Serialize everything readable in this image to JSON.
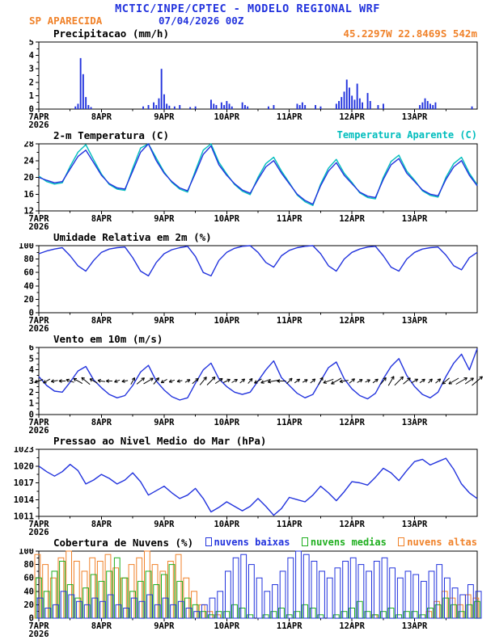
{
  "header": {
    "title": "MCTIC/INPE/CPTEC - MODELO REGIONAL WRF",
    "station": "SP APARECIDA",
    "run": "07/04/2026 00Z",
    "coords": "45.2297W 22.8469S 542m"
  },
  "colors": {
    "blue": "#2233dd",
    "cyan": "#00bdbd",
    "orange": "#f0822a",
    "green": "#1faf1f",
    "black": "#000000"
  },
  "x_axis": {
    "total_hours": 168,
    "step_hours": 3,
    "major_ticks": [
      0,
      24,
      48,
      72,
      96,
      120,
      144
    ],
    "labels": [
      "7APR",
      "8APR",
      "9APR",
      "10APR",
      "11APR",
      "12APR",
      "13APR"
    ],
    "year": "2026"
  },
  "chart_data": [
    {
      "id": "precip",
      "type": "bar",
      "title": "Precipitacao (mm/h)",
      "ylabel": "mm/h",
      "ylim": [
        0,
        5
      ],
      "yticks": [
        0,
        1,
        2,
        3,
        4,
        5
      ],
      "bar_color": "blue",
      "bars_hourly": [
        [
          14,
          0.2
        ],
        [
          15,
          0.4
        ],
        [
          16,
          3.8
        ],
        [
          17,
          2.6
        ],
        [
          18,
          0.9
        ],
        [
          19,
          0.3
        ],
        [
          20,
          0.15
        ],
        [
          40,
          0.2
        ],
        [
          42,
          0.3
        ],
        [
          44,
          0.5
        ],
        [
          45,
          0.3
        ],
        [
          46,
          0.8
        ],
        [
          47,
          3.0
        ],
        [
          48,
          1.1
        ],
        [
          49,
          0.4
        ],
        [
          50,
          0.25
        ],
        [
          52,
          0.2
        ],
        [
          54,
          0.3
        ],
        [
          58,
          0.15
        ],
        [
          60,
          0.2
        ],
        [
          66,
          0.7
        ],
        [
          67,
          0.4
        ],
        [
          68,
          0.3
        ],
        [
          70,
          0.5
        ],
        [
          71,
          0.3
        ],
        [
          72,
          0.6
        ],
        [
          73,
          0.4
        ],
        [
          74,
          0.2
        ],
        [
          78,
          0.5
        ],
        [
          79,
          0.3
        ],
        [
          80,
          0.2
        ],
        [
          88,
          0.2
        ],
        [
          90,
          0.3
        ],
        [
          99,
          0.4
        ],
        [
          100,
          0.3
        ],
        [
          101,
          0.5
        ],
        [
          102,
          0.3
        ],
        [
          106,
          0.3
        ],
        [
          108,
          0.2
        ],
        [
          114,
          0.4
        ],
        [
          115,
          0.6
        ],
        [
          116,
          0.9
        ],
        [
          117,
          1.3
        ],
        [
          118,
          2.2
        ],
        [
          119,
          1.6
        ],
        [
          120,
          1.0
        ],
        [
          121,
          0.7
        ],
        [
          122,
          1.9
        ],
        [
          123,
          0.8
        ],
        [
          124,
          0.5
        ],
        [
          126,
          1.2
        ],
        [
          127,
          0.6
        ],
        [
          130,
          0.3
        ],
        [
          132,
          0.4
        ],
        [
          146,
          0.3
        ],
        [
          147,
          0.5
        ],
        [
          148,
          0.8
        ],
        [
          149,
          0.6
        ],
        [
          150,
          0.4
        ],
        [
          151,
          0.3
        ],
        [
          152,
          0.5
        ],
        [
          166,
          0.2
        ]
      ]
    },
    {
      "id": "temp",
      "type": "line",
      "title": "2-m Temperatura (C)",
      "legend": "Temperatura Aparente (C)",
      "ylim": [
        12,
        28
      ],
      "yticks": [
        12,
        16,
        20,
        24,
        28
      ],
      "series": [
        {
          "name": "Temperatura Aparente (C)",
          "color": "cyan",
          "values": [
            20.3,
            19.0,
            18.4,
            18.7,
            22.6,
            26.0,
            27.8,
            24.2,
            20.8,
            18.3,
            17.2,
            16.9,
            22.2,
            27.0,
            28.0,
            24.6,
            21.3,
            18.8,
            17.2,
            16.5,
            21.6,
            26.5,
            28.0,
            23.6,
            20.8,
            18.3,
            16.7,
            15.9,
            20.0,
            23.3,
            24.8,
            21.5,
            18.7,
            15.8,
            14.2,
            13.3,
            18.4,
            22.2,
            24.3,
            21.0,
            18.8,
            16.3,
            15.2,
            14.9,
            20.0,
            23.8,
            25.3,
            21.5,
            19.3,
            16.8,
            15.7,
            15.3,
            20.0,
            23.3,
            24.8,
            21.0,
            18.2
          ]
        },
        {
          "name": "2-m Temperatura (C)",
          "color": "blue",
          "values": [
            20.0,
            19.3,
            18.7,
            19.0,
            22.0,
            25.0,
            26.5,
            23.5,
            20.5,
            18.5,
            17.5,
            17.2,
            21.5,
            26.0,
            28.0,
            24.0,
            21.0,
            19.0,
            17.5,
            16.8,
            21.0,
            25.5,
            27.5,
            23.0,
            20.5,
            18.5,
            17.0,
            16.2,
            19.5,
            22.5,
            24.0,
            21.0,
            18.5,
            16.0,
            14.5,
            13.6,
            18.0,
            21.5,
            23.5,
            20.5,
            18.5,
            16.5,
            15.5,
            15.2,
            19.5,
            23.0,
            24.5,
            21.0,
            19.0,
            17.0,
            16.0,
            15.6,
            19.5,
            22.5,
            24.0,
            20.5,
            18.0
          ]
        }
      ]
    },
    {
      "id": "rh",
      "type": "line",
      "title": "Umidade Relativa em 2m (%)",
      "ylim": [
        0,
        100
      ],
      "yticks": [
        0,
        20,
        40,
        60,
        80,
        100
      ],
      "series": [
        {
          "name": "Umidade Relativa em 2m (%)",
          "color": "blue",
          "values": [
            88,
            92,
            95,
            97,
            85,
            70,
            62,
            78,
            90,
            95,
            97,
            98,
            82,
            62,
            55,
            75,
            88,
            94,
            97,
            99,
            84,
            60,
            55,
            78,
            90,
            96,
            99,
            100,
            90,
            75,
            68,
            85,
            93,
            97,
            99,
            100,
            88,
            70,
            62,
            80,
            90,
            95,
            98,
            99,
            85,
            68,
            62,
            80,
            90,
            95,
            97,
            98,
            86,
            70,
            64,
            82,
            90
          ]
        }
      ]
    },
    {
      "id": "wind",
      "type": "wind",
      "title": "Vento em 10m (m/s)",
      "ylim": [
        0,
        6
      ],
      "yticks": [
        0,
        1,
        2,
        3,
        4,
        5,
        6
      ],
      "arrow_y": 3,
      "series": [
        {
          "name": "Vento em 10m (m/s)",
          "color": "blue",
          "values": [
            3.4,
            2.6,
            2.1,
            2.0,
            2.9,
            3.9,
            4.3,
            3.1,
            2.4,
            1.8,
            1.5,
            1.7,
            2.6,
            3.8,
            4.4,
            3.0,
            2.2,
            1.6,
            1.3,
            1.5,
            2.8,
            4.0,
            4.6,
            3.2,
            2.5,
            2.0,
            1.8,
            2.0,
            3.0,
            4.0,
            4.8,
            3.3,
            2.6,
            1.9,
            1.5,
            1.8,
            3.0,
            4.2,
            4.7,
            3.2,
            2.3,
            1.7,
            1.4,
            1.9,
            3.2,
            4.3,
            5.0,
            3.5,
            2.5,
            1.8,
            1.5,
            2.0,
            3.4,
            4.6,
            5.4,
            4.0,
            5.9
          ]
        }
      ],
      "directions_deg": [
        200,
        210,
        190,
        180,
        160,
        150,
        140,
        150,
        170,
        180,
        200,
        190,
        60,
        40,
        30,
        50,
        210,
        200,
        190,
        30,
        40,
        50,
        45,
        35,
        25,
        30,
        40,
        50,
        210,
        200,
        190,
        180,
        45,
        35,
        30,
        40,
        60,
        200,
        210,
        190,
        40,
        30,
        25,
        35,
        50,
        60,
        45,
        40,
        30,
        35,
        45,
        40,
        220,
        210,
        30,
        35,
        40
      ]
    },
    {
      "id": "pressure",
      "type": "line",
      "title": "Pressao ao Nivel Medio do Mar (hPa)",
      "ylim": [
        1011,
        1023
      ],
      "yticks": [
        1011,
        1014,
        1017,
        1020,
        1023
      ],
      "series": [
        {
          "name": "Pressao ao Nivel Medio do Mar (hPa)",
          "color": "blue",
          "values": [
            1020.0,
            1019.0,
            1018.2,
            1019.0,
            1020.3,
            1019.2,
            1016.8,
            1017.5,
            1018.5,
            1017.8,
            1016.8,
            1017.5,
            1018.8,
            1017.2,
            1014.8,
            1015.6,
            1016.4,
            1015.2,
            1014.2,
            1014.8,
            1016.0,
            1014.2,
            1011.8,
            1012.6,
            1013.6,
            1012.8,
            1012.0,
            1012.8,
            1014.2,
            1012.8,
            1011.2,
            1012.4,
            1014.4,
            1014.0,
            1013.6,
            1014.8,
            1016.4,
            1015.2,
            1013.8,
            1015.4,
            1017.2,
            1017.0,
            1016.6,
            1018.0,
            1019.6,
            1018.8,
            1017.4,
            1019.2,
            1020.8,
            1021.2,
            1020.2,
            1020.8,
            1021.4,
            1019.4,
            1016.8,
            1015.2,
            1014.2
          ]
        }
      ]
    },
    {
      "id": "clouds",
      "type": "cloudbar",
      "title": "Cobertura de Nuvens (%)",
      "ylim": [
        0,
        100
      ],
      "yticks": [
        0,
        20,
        40,
        60,
        80,
        100
      ],
      "legend": [
        {
          "label": "nuvens baixas",
          "color": "blue"
        },
        {
          "label": "nuvens medias",
          "color": "green"
        },
        {
          "label": "nuvens altas",
          "color": "orange"
        }
      ],
      "series": [
        {
          "name": "nuvens altas",
          "color": "orange",
          "values": [
            95,
            80,
            60,
            90,
            100,
            85,
            70,
            90,
            85,
            95,
            75,
            60,
            80,
            90,
            100,
            80,
            70,
            85,
            95,
            60,
            40,
            20,
            10,
            5,
            0,
            0,
            0,
            0,
            0,
            0,
            0,
            0,
            0,
            0,
            0,
            0,
            0,
            0,
            0,
            0,
            0,
            0,
            0,
            5,
            0,
            0,
            0,
            0,
            0,
            0,
            10,
            25,
            40,
            30,
            20,
            35,
            30
          ]
        },
        {
          "name": "nuvens medias",
          "color": "green",
          "values": [
            60,
            40,
            70,
            85,
            50,
            30,
            45,
            65,
            55,
            70,
            90,
            60,
            40,
            55,
            70,
            50,
            65,
            80,
            55,
            30,
            20,
            10,
            5,
            10,
            10,
            20,
            15,
            5,
            0,
            5,
            10,
            15,
            5,
            10,
            20,
            15,
            5,
            0,
            5,
            10,
            15,
            25,
            10,
            5,
            10,
            15,
            5,
            10,
            10,
            5,
            15,
            20,
            30,
            20,
            10,
            20,
            25
          ]
        },
        {
          "name": "nuvens baixas",
          "color": "blue",
          "values": [
            30,
            15,
            20,
            40,
            35,
            25,
            20,
            30,
            25,
            35,
            20,
            15,
            30,
            25,
            35,
            20,
            30,
            20,
            25,
            15,
            10,
            20,
            30,
            40,
            70,
            90,
            95,
            80,
            60,
            40,
            50,
            70,
            90,
            100,
            95,
            85,
            70,
            60,
            75,
            85,
            90,
            80,
            70,
            85,
            90,
            75,
            60,
            70,
            65,
            55,
            70,
            80,
            60,
            45,
            35,
            50,
            40
          ]
        }
      ]
    }
  ]
}
